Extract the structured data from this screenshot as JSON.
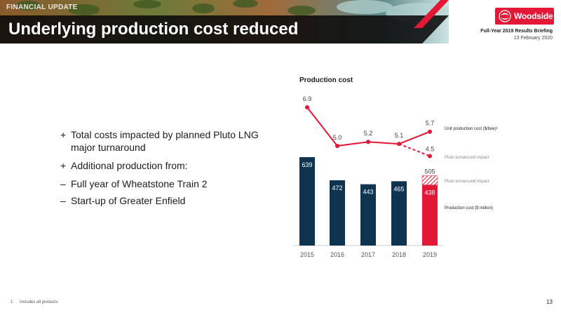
{
  "header": {
    "section_tag": "FINANCIAL UPDATE",
    "title": "Underlying production cost reduced",
    "logo_text": "Woodside",
    "briefing_title": "Full-Year 2019 Results Briefing",
    "briefing_date": "13 February 2020"
  },
  "bullets": [
    {
      "marker": "+",
      "text": "Total costs impacted by planned Pluto LNG major turnaround"
    },
    {
      "marker": "+",
      "text": "Additional production from:"
    }
  ],
  "sub_bullets": [
    {
      "marker": "–",
      "text": "Full year of Wheatstone Train 2"
    },
    {
      "marker": "–",
      "text": "Start-up of Greater Enfield"
    }
  ],
  "chart_data": {
    "type": "bar",
    "title": "Production cost",
    "categories": [
      "2015",
      "2016",
      "2017",
      "2018",
      "2019"
    ],
    "series": [
      {
        "name": "Production cost ($ million)",
        "values": [
          639,
          472,
          443,
          465,
          438
        ]
      },
      {
        "name": "Pluto turnaround impact",
        "values": [
          null,
          null,
          null,
          null,
          67
        ]
      }
    ],
    "line_series": [
      {
        "name": "Unit production cost ($/boe)¹",
        "values": [
          6.9,
          5.0,
          5.2,
          5.1,
          5.7
        ]
      },
      {
        "name": "Pluto turnaround impact",
        "values": [
          null,
          null,
          null,
          5.1,
          4.5
        ]
      }
    ],
    "bar_labels": [
      "639",
      "472",
      "443",
      "465",
      "438"
    ],
    "stack_total_label": "505",
    "line_labels": [
      "6.9",
      "5.0",
      "5.2",
      "5.1",
      "5.7"
    ],
    "adjusted_line_label": "4.5",
    "legend": [
      "Unit production cost ($/boe)¹",
      "Pluto turnaround impact",
      "Pluto turnaround impact",
      "Production cost ($ million)"
    ],
    "colors": {
      "bar": "#0f3450",
      "highlight": "#e31837",
      "axis": "#cccccc"
    }
  },
  "footer": {
    "footnote_num": "1",
    "footnote_text": "Includes all products",
    "page_number": "13"
  }
}
